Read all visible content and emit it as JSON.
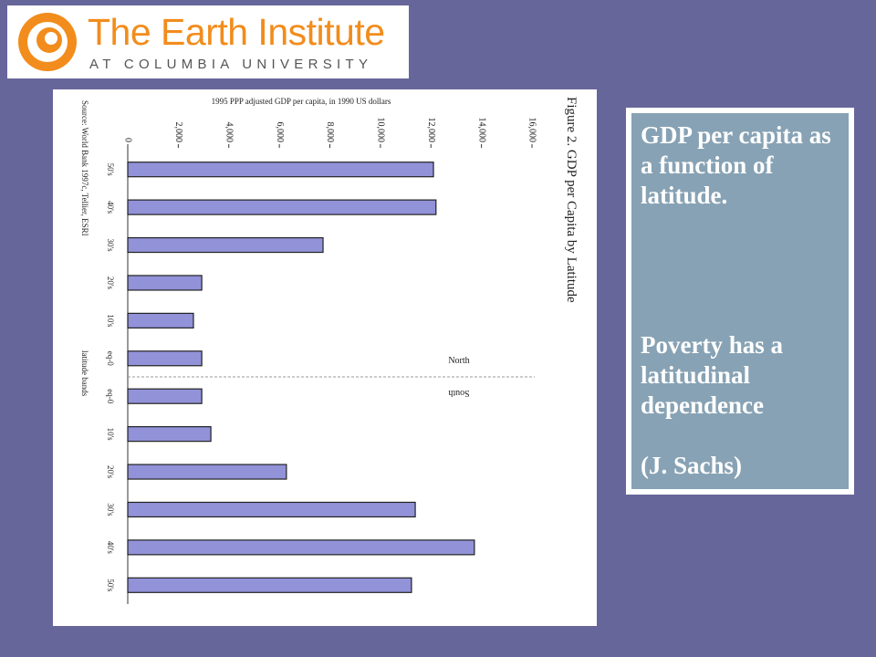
{
  "logo": {
    "title": "The Earth Institute",
    "subtitle": "AT COLUMBIA UNIVERSITY"
  },
  "chart_data": {
    "type": "bar",
    "orientation": "horizontal",
    "title": "Figure 2. GDP per Capita by Latitude",
    "axis_label": "1995 PPP adjusted GDP per capita, in 1990 US dollars",
    "source": "Source: World Bank 1997c, Tellier, ESRI",
    "category_axis_label": "latitude bands",
    "annotations": [
      "North",
      "South"
    ],
    "categories": [
      "50's",
      "40's",
      "30's",
      "20's",
      "10's",
      "eq-0",
      "eq-0",
      "10's",
      "20's",
      "30's",
      "40's",
      "50's"
    ],
    "values": [
      12100,
      12200,
      7730,
      2930,
      2600,
      2930,
      2930,
      3290,
      6280,
      11380,
      13720,
      11230
    ],
    "color": "#9292d9",
    "xlim": [
      0,
      16000
    ],
    "xticks": [
      0,
      {
        "value": 2000,
        "label": "2,000"
      },
      {
        "value": 4000,
        "label": "4,000"
      },
      {
        "value": 6000,
        "label": "6,000"
      },
      {
        "value": 8000,
        "label": "8,000"
      },
      {
        "value": 10000,
        "label": "10,000"
      },
      {
        "value": 12000,
        "label": "12,000"
      },
      {
        "value": 14000,
        "label": "14,000"
      },
      {
        "value": 16000,
        "label": "16,000"
      }
    ]
  },
  "note": {
    "lines": [
      "GDP per capita as a function of latitude.",
      "Poverty has a latitudinal dependence",
      "(J. Sachs)"
    ]
  }
}
